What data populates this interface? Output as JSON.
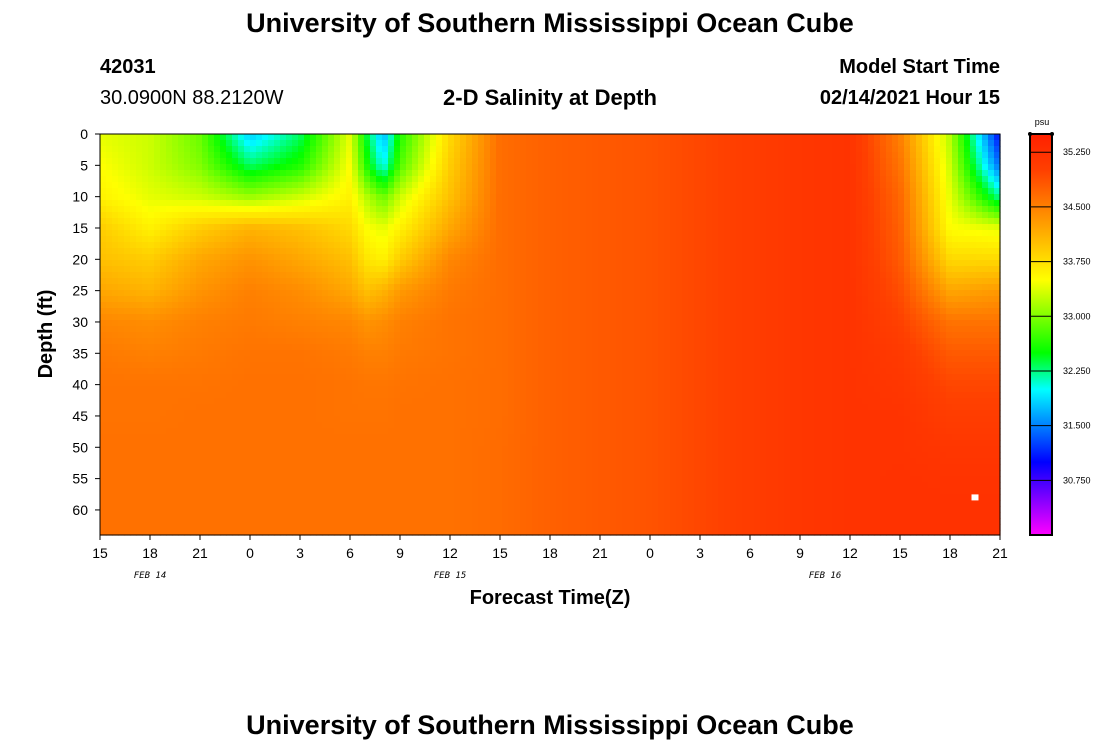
{
  "header": {
    "title": "University of Southern Mississippi Ocean Cube",
    "station_id": "42031",
    "coords": "30.0900N 88.2120W",
    "plot_title": "2-D Salinity at Depth",
    "model_start_label": "Model Start Time",
    "model_start_value": "02/14/2021 Hour 15"
  },
  "footer": {
    "title": "University of Southern Mississippi Ocean Cube"
  },
  "colors": {
    "palette": [
      "#ff00ff",
      "#8000ff",
      "#0000ff",
      "#0080ff",
      "#00ffff",
      "#00ff00",
      "#80ff00",
      "#ffff00",
      "#ffc000",
      "#ff8000",
      "#ff4000",
      "#ff2000"
    ]
  },
  "chart_data": {
    "type": "heatmap",
    "xlabel": "Forecast Time(Z)",
    "ylabel": "Depth (ft)",
    "x_tick_labels": [
      "15",
      "18",
      "21",
      "0",
      "3",
      "6",
      "9",
      "12",
      "15",
      "18",
      "21",
      "0",
      "3",
      "6",
      "9",
      "12",
      "15",
      "18",
      "21"
    ],
    "date_labels": [
      {
        "label": "FEB 14",
        "hours": 3
      },
      {
        "label": "FEB 15",
        "hours": 21
      },
      {
        "label": "FEB 16",
        "hours": 43.5
      }
    ],
    "x_range_hours": [
      0,
      54
    ],
    "y_ticks": [
      0,
      5,
      10,
      15,
      20,
      25,
      30,
      35,
      40,
      45,
      50,
      55,
      60
    ],
    "ylim": [
      0,
      64
    ],
    "colorbar": {
      "unit": "psu",
      "min": 30.0,
      "max": 35.5,
      "labels": [
        "35.250",
        "34.500",
        "33.750",
        "33.000",
        "32.250",
        "31.500",
        "30.750"
      ]
    },
    "depths_ft": [
      0,
      5,
      10,
      15,
      20,
      25,
      30,
      35,
      40,
      45,
      50,
      55,
      60,
      64
    ],
    "times_h": [
      0,
      3,
      6,
      9,
      12,
      15,
      16,
      17,
      18,
      21,
      24,
      27,
      30,
      33,
      36,
      39,
      42,
      45,
      48,
      51,
      54
    ],
    "salinity": [
      [
        33.4,
        33.3,
        32.9,
        31.8,
        32.3,
        33.4,
        32.4,
        31.7,
        32.6,
        33.8,
        34.65,
        34.75,
        34.8,
        34.85,
        34.95,
        35.05,
        35.15,
        35.2,
        34.5,
        33.2,
        31.0
      ],
      [
        33.5,
        33.3,
        33.0,
        32.3,
        32.6,
        33.5,
        32.6,
        32.0,
        32.8,
        33.9,
        34.65,
        34.75,
        34.8,
        34.85,
        34.95,
        35.05,
        35.15,
        35.2,
        34.6,
        33.3,
        31.4
      ],
      [
        33.6,
        33.4,
        33.3,
        33.1,
        33.3,
        33.6,
        33.2,
        32.9,
        33.3,
        34.0,
        34.65,
        34.75,
        34.8,
        34.85,
        34.95,
        35.05,
        35.15,
        35.2,
        34.7,
        33.4,
        32.2
      ],
      [
        33.9,
        33.6,
        33.9,
        34.1,
        34.0,
        33.8,
        33.5,
        33.4,
        33.6,
        34.2,
        34.65,
        34.75,
        34.8,
        34.85,
        34.95,
        35.05,
        35.15,
        35.2,
        34.75,
        33.5,
        33.4
      ],
      [
        34.0,
        33.9,
        34.2,
        34.35,
        34.2,
        34.0,
        33.7,
        33.6,
        33.9,
        34.45,
        34.65,
        34.75,
        34.8,
        34.85,
        34.95,
        35.05,
        35.15,
        35.2,
        34.8,
        33.8,
        33.8
      ],
      [
        34.2,
        34.1,
        34.35,
        34.5,
        34.4,
        34.2,
        34.0,
        34.1,
        34.3,
        34.55,
        34.65,
        34.75,
        34.8,
        34.85,
        34.95,
        35.05,
        35.15,
        35.2,
        34.9,
        34.2,
        34.3
      ],
      [
        34.45,
        34.4,
        34.5,
        34.55,
        34.5,
        34.45,
        34.35,
        34.4,
        34.5,
        34.6,
        34.65,
        34.75,
        34.8,
        34.85,
        34.95,
        35.05,
        35.15,
        35.2,
        35.0,
        34.6,
        34.6
      ],
      [
        34.55,
        34.5,
        34.55,
        34.6,
        34.6,
        34.55,
        34.5,
        34.5,
        34.55,
        34.6,
        34.65,
        34.75,
        34.8,
        34.85,
        34.95,
        35.05,
        35.15,
        35.2,
        35.1,
        34.8,
        34.8
      ],
      [
        34.6,
        34.6,
        34.6,
        34.62,
        34.62,
        34.6,
        34.58,
        34.58,
        34.6,
        34.62,
        34.65,
        34.75,
        34.8,
        34.85,
        34.95,
        35.05,
        35.15,
        35.2,
        35.15,
        34.95,
        34.95
      ],
      [
        34.6,
        34.6,
        34.62,
        34.62,
        34.62,
        34.6,
        34.6,
        34.6,
        34.62,
        34.62,
        34.65,
        34.75,
        34.8,
        34.85,
        34.95,
        35.05,
        35.15,
        35.2,
        35.2,
        35.05,
        35.05
      ],
      [
        34.62,
        34.62,
        34.62,
        34.62,
        34.62,
        34.62,
        34.62,
        34.62,
        34.62,
        34.62,
        34.66,
        34.75,
        34.8,
        34.85,
        34.95,
        35.05,
        35.15,
        35.2,
        35.2,
        35.15,
        35.15
      ],
      [
        34.62,
        34.62,
        34.62,
        34.62,
        34.62,
        34.62,
        34.62,
        34.62,
        34.62,
        34.62,
        34.66,
        34.75,
        34.8,
        34.85,
        34.95,
        35.05,
        35.15,
        35.2,
        35.22,
        35.2,
        35.2
      ],
      [
        34.62,
        34.62,
        34.62,
        34.62,
        34.62,
        34.62,
        34.62,
        34.62,
        34.62,
        34.62,
        34.66,
        34.75,
        34.8,
        34.85,
        34.95,
        35.05,
        35.15,
        35.2,
        35.22,
        35.22,
        35.22
      ],
      [
        34.62,
        34.62,
        34.62,
        34.62,
        34.62,
        34.62,
        34.62,
        34.62,
        34.62,
        34.62,
        34.66,
        34.75,
        34.8,
        34.85,
        34.95,
        35.05,
        35.15,
        35.2,
        35.22,
        35.22,
        35.22
      ]
    ],
    "marker": {
      "hours": 52.5,
      "depth_ft": 58
    }
  }
}
